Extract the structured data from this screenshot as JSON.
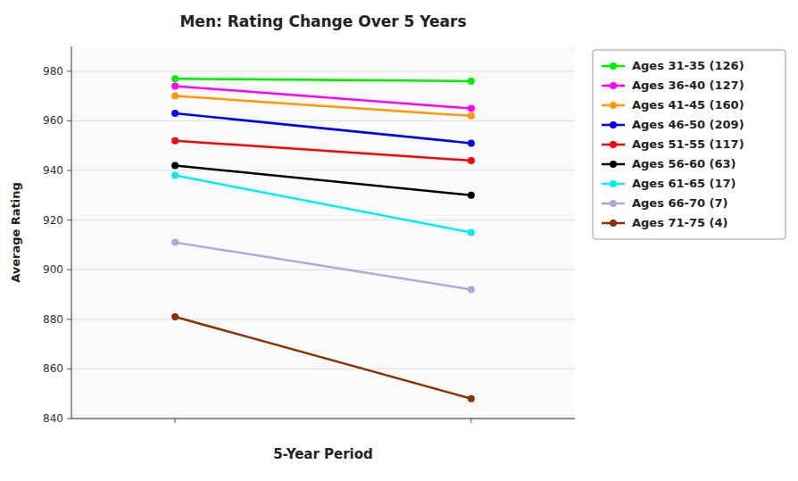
{
  "chart_data": {
    "type": "line",
    "title": "Men: Rating Change Over 5 Years",
    "xlabel": "5-Year Period",
    "ylabel": "Average Rating",
    "x": [
      1,
      2
    ],
    "xlim": [
      0.65,
      2.35
    ],
    "xticks": [
      1,
      2
    ],
    "ylim": [
      840,
      990
    ],
    "yticks": [
      840,
      860,
      880,
      900,
      920,
      940,
      960,
      980
    ],
    "grid": true,
    "legend": "right",
    "tick_labels": "y",
    "marker": "circle",
    "line_style": "solid",
    "series": [
      {
        "name": "Ages 31-35 (126)",
        "color": "#00EE00",
        "values": [
          977,
          976
        ]
      },
      {
        "name": "Ages 36-40 (127)",
        "color": "#FF00FF",
        "values": [
          974,
          965
        ]
      },
      {
        "name": "Ages 41-45 (160)",
        "color": "#FF9900",
        "values": [
          970,
          962
        ]
      },
      {
        "name": "Ages 46-50 (209)",
        "color": "#0000FF",
        "values": [
          963,
          951
        ]
      },
      {
        "name": "Ages 51-55 (117)",
        "color": "#FF0000",
        "values": [
          952,
          944
        ]
      },
      {
        "name": "Ages 56-60 (63)",
        "color": "#000000",
        "values": [
          942,
          930
        ]
      },
      {
        "name": "Ages 61-65 (17)",
        "color": "#00EEEE",
        "values": [
          938,
          915
        ]
      },
      {
        "name": "Ages 66-70 (7)",
        "color": "#AAAADD",
        "values": [
          911,
          892
        ]
      },
      {
        "name": "Ages 71-75 (4)",
        "color": "#8B3300",
        "values": [
          881,
          848
        ]
      }
    ]
  }
}
